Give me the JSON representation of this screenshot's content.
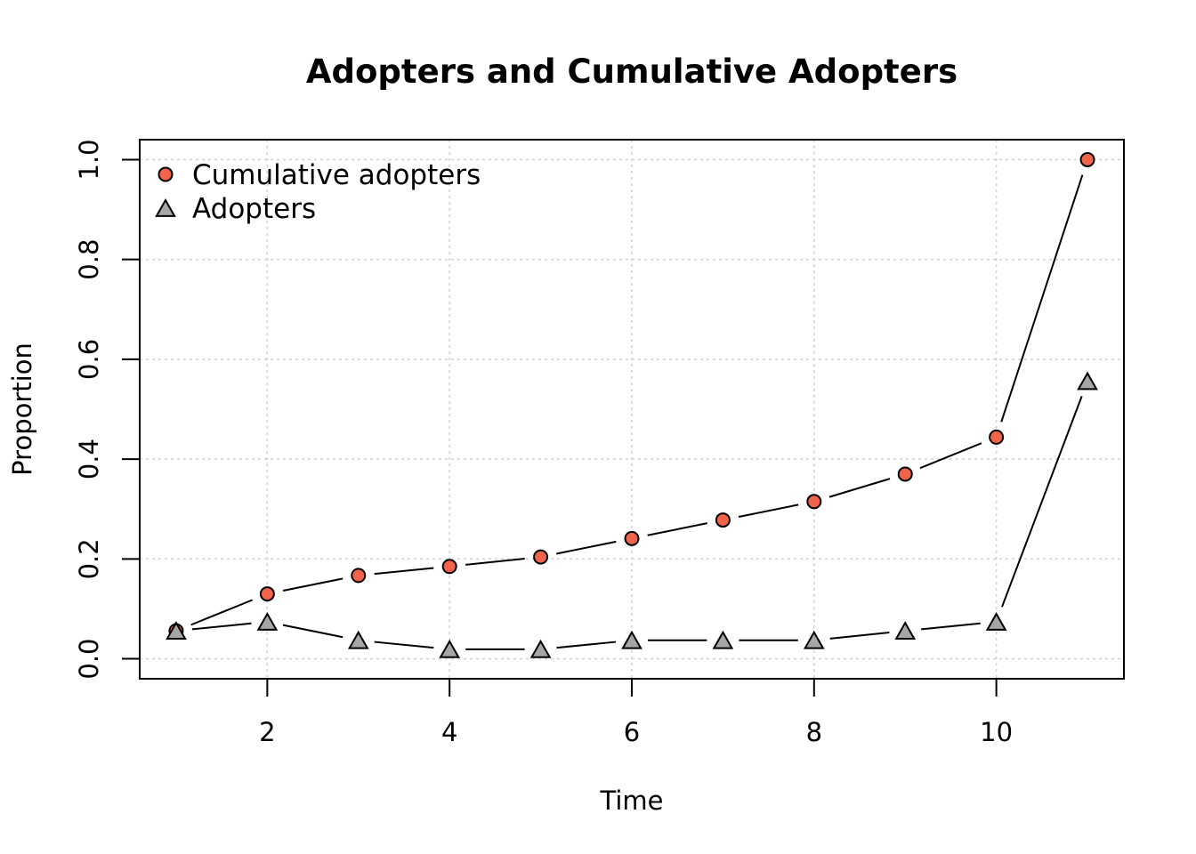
{
  "chart_data": {
    "type": "line",
    "title": "Adopters and Cumulative Adopters",
    "xlabel": "Time",
    "ylabel": "Proportion",
    "xlim": [
      0.6,
      11.4
    ],
    "ylim": [
      -0.04,
      1.04
    ],
    "x_ticks": [
      2,
      4,
      6,
      8,
      10
    ],
    "y_ticks": [
      0.0,
      0.2,
      0.4,
      0.6,
      0.8,
      1.0
    ],
    "x_tick_labels": [
      "2",
      "4",
      "6",
      "8",
      "10"
    ],
    "y_tick_labels": [
      "0.0",
      "0.2",
      "0.4",
      "0.6",
      "0.8",
      "1.0"
    ],
    "grid": true,
    "legend_position": "top-left",
    "x": [
      1,
      2,
      3,
      4,
      5,
      6,
      7,
      8,
      9,
      10,
      11
    ],
    "series": [
      {
        "name": "Cumulative adopters",
        "marker": "circle",
        "color": "#F2634B",
        "values": [
          0.056,
          0.13,
          0.167,
          0.185,
          0.204,
          0.241,
          0.278,
          0.315,
          0.37,
          0.444,
          1.0
        ]
      },
      {
        "name": "Adopters",
        "marker": "triangle",
        "color": "#A6A6A6",
        "values": [
          0.056,
          0.074,
          0.037,
          0.019,
          0.019,
          0.037,
          0.037,
          0.037,
          0.056,
          0.074,
          0.556
        ]
      }
    ]
  }
}
